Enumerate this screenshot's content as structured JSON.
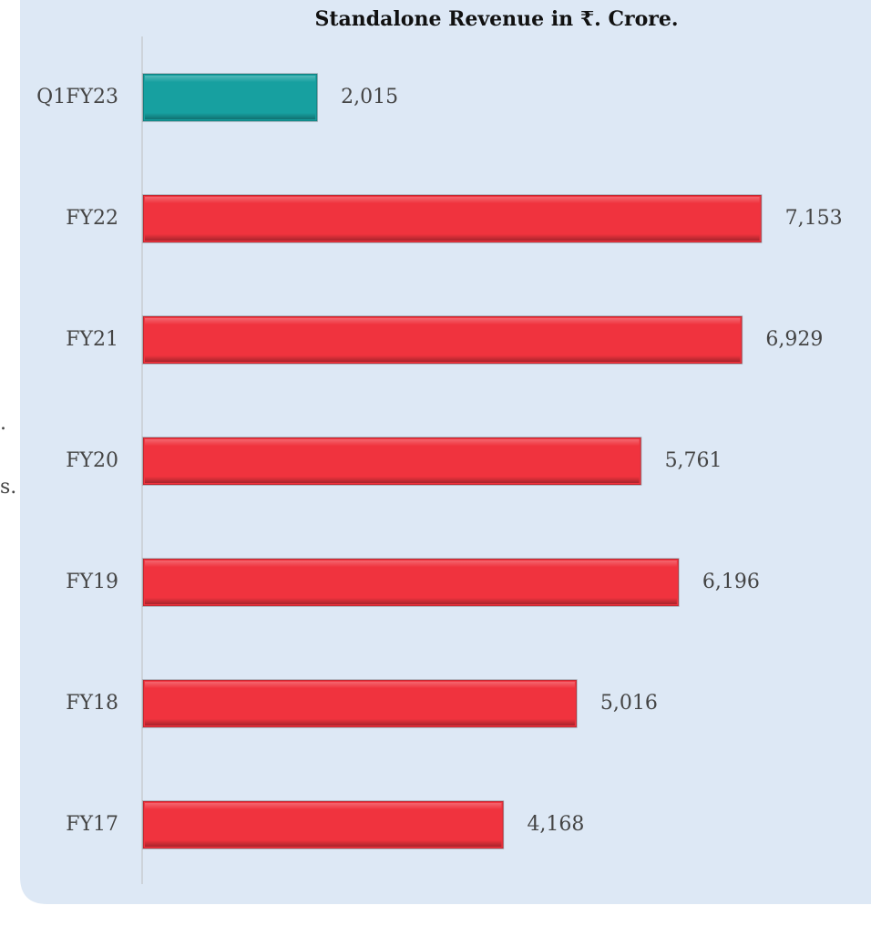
{
  "chart_data": {
    "type": "hbar",
    "title": "Standalone Revenue in ₹. Crore.",
    "categories": [
      "Q1FY23",
      "FY22",
      "FY21",
      "FY20",
      "FY19",
      "FY18",
      "FY17"
    ],
    "values": [
      2015,
      7153,
      6929,
      5761,
      6196,
      5016,
      4168
    ],
    "value_labels": [
      "2,015",
      "7,153",
      "6,929",
      "5,761",
      "6,196",
      "5,016",
      "4,168"
    ],
    "colors": [
      "#17a0a0",
      "#f0333e",
      "#f0333e",
      "#f0333e",
      "#f0333e",
      "#f0333e",
      "#f0333e"
    ],
    "xlim": [
      0,
      8000
    ]
  },
  "cropped_text": [
    ".",
    "s."
  ]
}
